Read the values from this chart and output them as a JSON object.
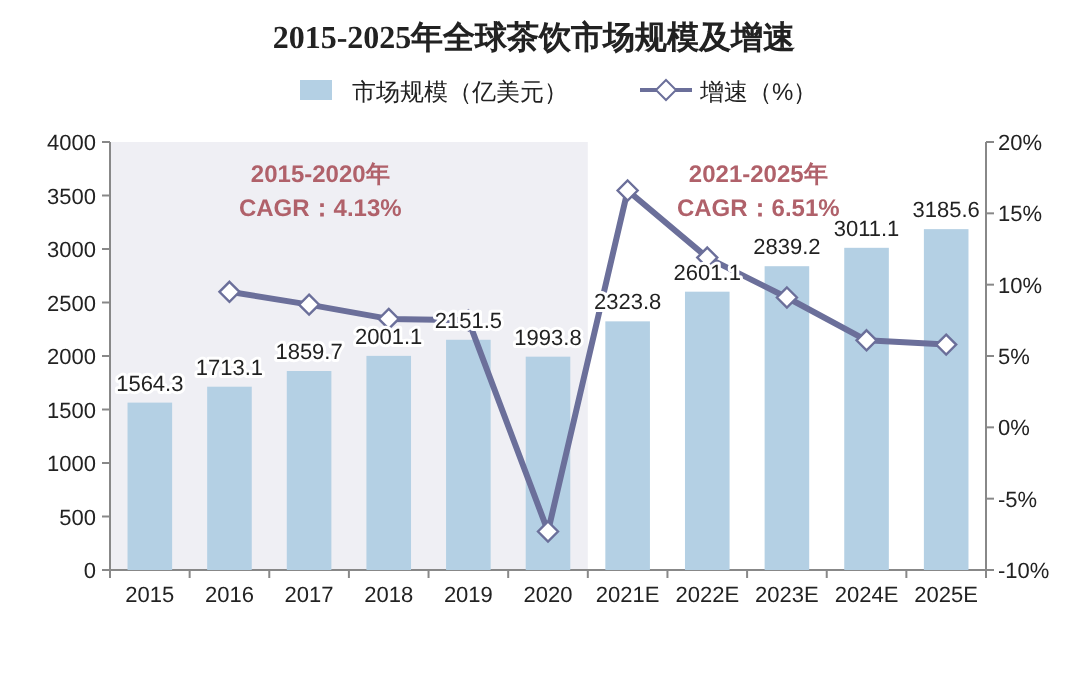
{
  "chart_data": {
    "type": "bar",
    "title": "2015-2025年全球茶饮市场规模及增速",
    "categories": [
      "2015",
      "2016",
      "2017",
      "2018",
      "2019",
      "2020",
      "2021E",
      "2022E",
      "2023E",
      "2024E",
      "2025E"
    ],
    "series": [
      {
        "name": "市场规模（亿美元）",
        "color": "#b4d0e4",
        "values": [
          1564.3,
          1713.1,
          1859.7,
          2001.1,
          2151.5,
          1993.8,
          2323.8,
          2601.1,
          2839.2,
          3011.1,
          3185.6
        ],
        "data_labels": true
      },
      {
        "name": "增速（%）",
        "type": "line",
        "axis": "y2",
        "color": "#6b6f9a",
        "marker": "diamond",
        "values": [
          null,
          9.5,
          8.6,
          7.6,
          7.5,
          -7.3,
          16.6,
          11.9,
          9.1,
          6.1,
          5.8
        ]
      }
    ],
    "ylim": [
      0,
      4000
    ],
    "yticks": [
      0,
      500,
      1000,
      1500,
      2000,
      2500,
      3000,
      3500,
      4000
    ],
    "y2lim": [
      -10,
      20
    ],
    "y2ticks": [
      {
        "value": -10,
        "label": "-10%"
      },
      {
        "value": -5,
        "label": "-5%"
      },
      {
        "value": 0,
        "label": "0%"
      },
      {
        "value": 5,
        "label": "5%"
      },
      {
        "value": 10,
        "label": "10%"
      },
      {
        "value": 15,
        "label": "15%"
      },
      {
        "value": 20,
        "label": "20%"
      }
    ],
    "bands": [
      {
        "axis": "x",
        "from": "2015",
        "to": "2020",
        "label": null,
        "color": "#efeff4"
      }
    ],
    "annotations": [
      "2015-2020年\nCAGR：4.13%",
      "2021-2025年\nCAGR：6.51%"
    ],
    "legend": "top",
    "grid": false
  }
}
